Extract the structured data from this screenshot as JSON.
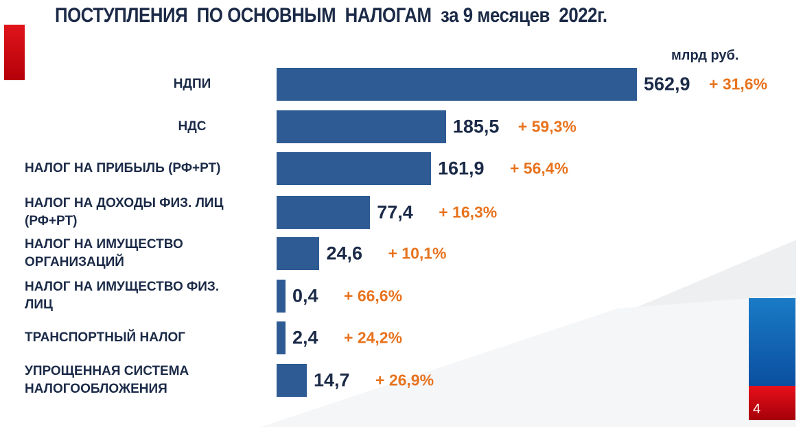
{
  "title": "ПОСТУПЛЕНИЯ  ПО ОСНОВНЫМ  НАЛОГАМ  за 9 месяцев  2022г.",
  "page_number": "4",
  "colors": {
    "bar": "#2e5b93",
    "value": "#1b2a47",
    "percent": "#e8731e"
  },
  "chart_data": {
    "type": "bar",
    "orientation": "horizontal",
    "title": "ПОСТУПЛЕНИЯ  ПО ОСНОВНЫМ  НАЛОГАМ  за 9 месяцев  2022г.",
    "unit": "млрд руб.",
    "categories": [
      "НДПИ",
      "НДС",
      "НАЛОГ НА ПРИБЫЛЬ (РФ+РТ)",
      "НАЛОГ НА ДОХОДЫ ФИЗ. ЛИЦ (РФ+РТ)",
      "НАЛОГ НА ИМУЩЕСТВО ОРГАНИЗАЦИЙ",
      "НАЛОГ НА ИМУЩЕСТВО ФИЗ. ЛИЦ",
      "ТРАНСПОРТНЫЙ НАЛОГ",
      "УПРОЩЕННАЯ СИСТЕМА НАЛОГООБЛОЖЕНИЯ"
    ],
    "values": [
      562.9,
      185.5,
      161.9,
      77.4,
      24.6,
      0.4,
      2.4,
      14.7
    ],
    "value_labels": [
      "562,9",
      "185,5",
      "161,9",
      "77,4",
      "24,6",
      "0,4",
      "2,4",
      "14,7"
    ],
    "growth_labels": [
      "+ 31,6%",
      "+ 59,3%",
      "+ 56,4%",
      "+ 16,3%",
      "+ 10,1%",
      "+ 66,6%",
      "+ 24,2%",
      "+ 26,9%"
    ],
    "growth_percent": [
      31.6,
      59.3,
      56.4,
      16.3,
      10.1,
      66.6,
      24.2,
      26.9
    ]
  }
}
